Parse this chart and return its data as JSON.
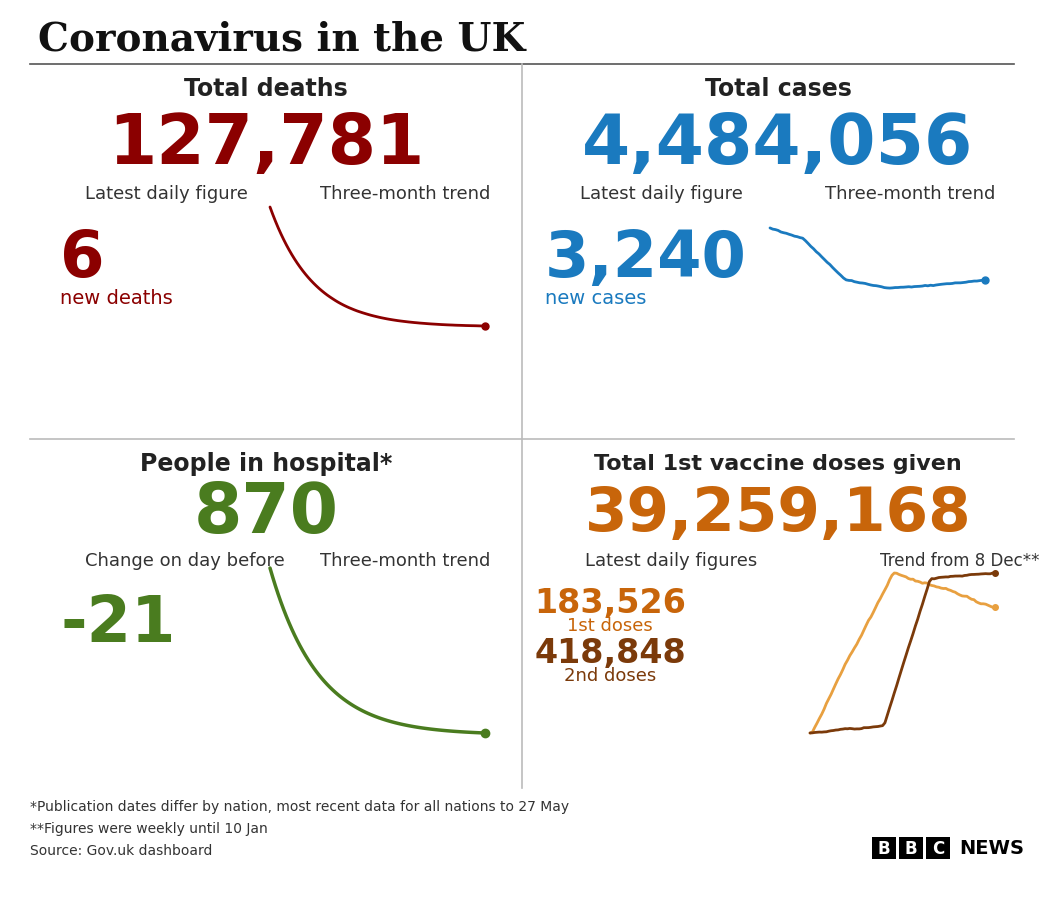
{
  "title": "Coronavirus in the UK",
  "bg_color": "#ffffff",
  "panels": {
    "deaths": {
      "label": "Total deaths",
      "total": "127,781",
      "total_color": "#8b0000",
      "daily_label": "Latest daily figure",
      "daily_value": "6",
      "daily_unit": "new deaths",
      "daily_color": "#8b0000",
      "trend_label": "Three-month trend",
      "trend_color": "#8b0000"
    },
    "cases": {
      "label": "Total cases",
      "total": "4,484,056",
      "total_color": "#1a7abf",
      "daily_label": "Latest daily figure",
      "daily_value": "3,240",
      "daily_unit": "new cases",
      "daily_color": "#1a7abf",
      "trend_label": "Three-month trend",
      "trend_color": "#1a7abf"
    },
    "hospital": {
      "label": "People in hospital*",
      "total": "870",
      "total_color": "#4a7c1f",
      "daily_label": "Change on day before",
      "daily_value": "-21",
      "daily_color": "#4a7c1f",
      "trend_label": "Three-month trend",
      "trend_color": "#4a7c1f"
    },
    "vaccine": {
      "label": "Total 1st vaccine doses given",
      "total": "39,259,168",
      "total_color": "#c8650a",
      "daily_label": "Latest daily figures",
      "dose1_value": "183,526",
      "dose1_unit": "1st doses",
      "dose1_color": "#c8650a",
      "dose2_value": "418,848",
      "dose2_unit": "2nd doses",
      "dose2_color": "#7b3a0a",
      "trend_label": "Trend from 8 Dec**",
      "trend_color1": "#e8a040",
      "trend_color2": "#7b3a0a"
    }
  },
  "footnotes": [
    "*Publication dates differ by nation, most recent data for all nations to 27 May",
    "**Figures were weekly until 10 Jan",
    "Source: Gov.uk dashboard"
  ]
}
